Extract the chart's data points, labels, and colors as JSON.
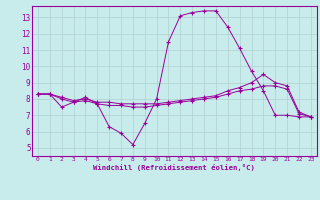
{
  "xlabel": "Windchill (Refroidissement éolien,°C)",
  "bg_color": "#c8ecec",
  "line_color": "#990099",
  "grid_color": "#b0d0d0",
  "xlim": [
    -0.5,
    23.5
  ],
  "ylim": [
    4.5,
    13.7
  ],
  "yticks": [
    5,
    6,
    7,
    8,
    9,
    10,
    11,
    12,
    13
  ],
  "xticks": [
    0,
    1,
    2,
    3,
    4,
    5,
    6,
    7,
    8,
    9,
    10,
    11,
    12,
    13,
    14,
    15,
    16,
    17,
    18,
    19,
    20,
    21,
    22,
    23
  ],
  "series": [
    {
      "x": [
        0,
        1,
        2,
        3,
        4,
        5,
        6,
        7,
        8,
        9,
        10,
        11,
        12,
        13,
        14,
        15,
        16,
        17,
        18,
        19,
        20,
        21,
        22,
        23
      ],
      "y": [
        8.3,
        8.3,
        7.5,
        7.8,
        8.1,
        7.7,
        6.3,
        5.9,
        5.2,
        6.5,
        8.0,
        11.5,
        13.1,
        13.3,
        13.4,
        13.4,
        12.4,
        11.1,
        9.7,
        8.5,
        7.0,
        7.0,
        6.9,
        6.9
      ],
      "linestyle": "-"
    },
    {
      "x": [
        0,
        1,
        2,
        3,
        4,
        5,
        6,
        7,
        8,
        9,
        10,
        11,
        12,
        13,
        14,
        15,
        16,
        17,
        18,
        19,
        20,
        21,
        22,
        23
      ],
      "y": [
        8.3,
        8.3,
        8.1,
        7.9,
        8.0,
        7.8,
        7.8,
        7.7,
        7.7,
        7.7,
        7.7,
        7.8,
        7.9,
        8.0,
        8.1,
        8.2,
        8.5,
        8.7,
        9.0,
        9.5,
        9.0,
        8.8,
        7.2,
        6.9
      ],
      "linestyle": "-"
    },
    {
      "x": [
        0,
        1,
        2,
        3,
        4,
        5,
        6,
        7,
        8,
        9,
        10,
        11,
        12,
        13,
        14,
        15,
        16,
        17,
        18,
        19,
        20,
        21,
        22,
        23
      ],
      "y": [
        8.3,
        8.3,
        8.0,
        7.8,
        7.9,
        7.7,
        7.6,
        7.6,
        7.5,
        7.5,
        7.6,
        7.7,
        7.8,
        7.9,
        8.0,
        8.1,
        8.3,
        8.5,
        8.6,
        8.8,
        8.8,
        8.6,
        7.1,
        6.9
      ],
      "linestyle": "-"
    }
  ]
}
